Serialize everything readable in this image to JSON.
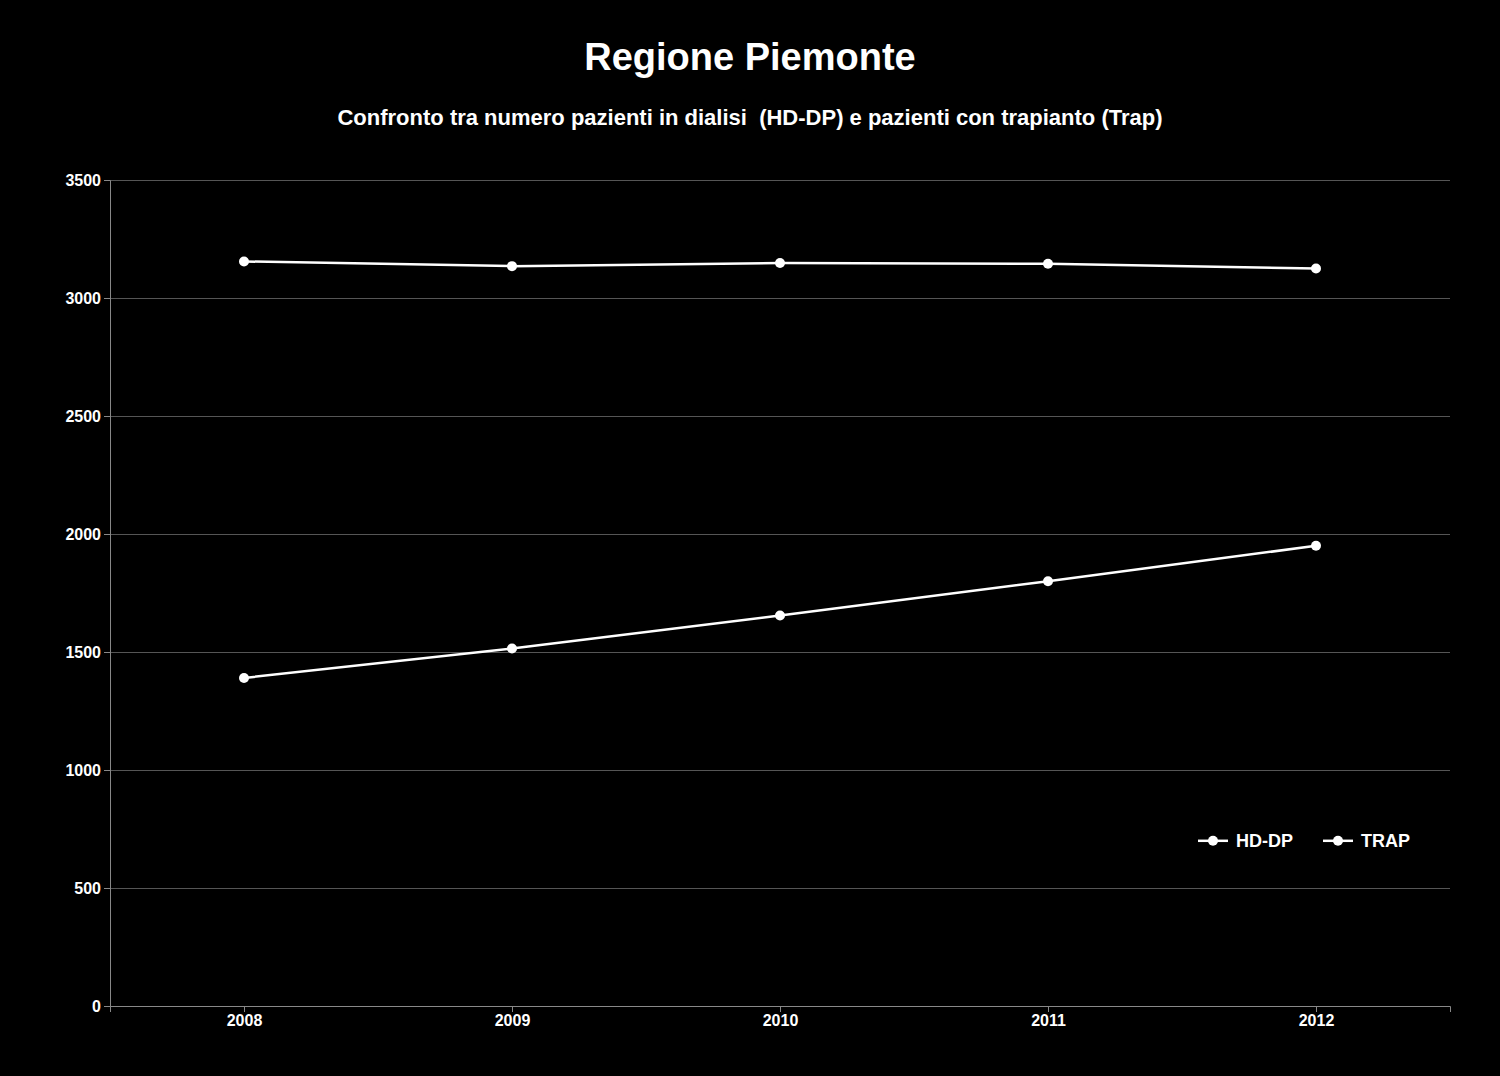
{
  "chart_data": {
    "type": "line",
    "title": "Regione Piemonte",
    "subtitle": "Confronto tra numero pazienti in dialisi  (HD-DP) e pazienti con trapianto (Trap)",
    "x": [
      2008,
      2009,
      2010,
      2011,
      2012
    ],
    "series": [
      {
        "name": "HD-DP",
        "color": "#ffffff",
        "values": [
          3155,
          3135,
          3148,
          3145,
          3125
        ]
      },
      {
        "name": "TRAP",
        "color": "#ffffff",
        "values": [
          1390,
          1515,
          1655,
          1800,
          1950
        ]
      }
    ],
    "xlim": [
      2007.5,
      2012.5
    ],
    "xticks": [
      2008,
      2009,
      2010,
      2011,
      2012
    ],
    "ylim": [
      0,
      3500
    ],
    "yticks": [
      0,
      500,
      1000,
      1500,
      2000,
      2500,
      3000,
      3500
    ],
    "grid": true,
    "legend": "lower right",
    "marker": "circle",
    "line_style": "solid"
  }
}
